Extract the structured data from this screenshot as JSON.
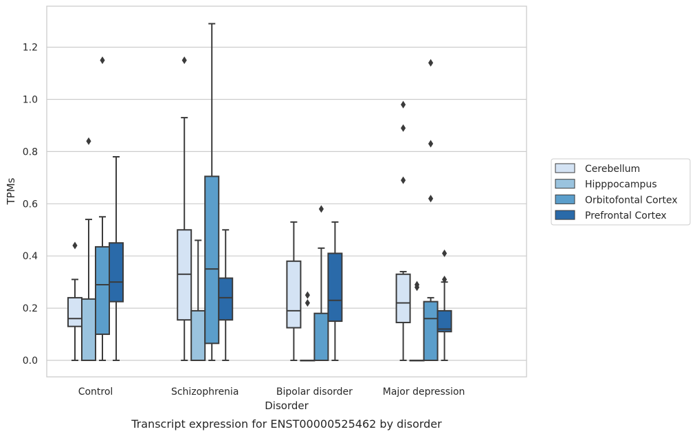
{
  "chart_data": {
    "type": "box",
    "title": "",
    "caption": "Transcript expression for ENST00000525462 by disorder",
    "xlabel": "Disorder",
    "ylabel": "TPMs",
    "ylim": [
      -0.065,
      1.36
    ],
    "yticks": [
      0.0,
      0.2,
      0.4,
      0.6,
      0.8,
      1.0,
      1.2
    ],
    "ytick_labels": [
      "0.0",
      "0.2",
      "0.4",
      "0.6",
      "0.8",
      "1.0",
      "1.2"
    ],
    "grid": "horizontal",
    "legend_position": "right",
    "categories": [
      "Control",
      "Schizophrenia",
      "Bipolar disorder",
      "Major depression"
    ],
    "series": [
      {
        "name": "Cerebellum",
        "color": "#d4e3f4",
        "boxes": [
          {
            "min": 0.0,
            "q1": 0.13,
            "median": 0.16,
            "q3": 0.24,
            "max": 0.31,
            "outliers": [
              0.44
            ]
          },
          {
            "min": 0.0,
            "q1": 0.155,
            "median": 0.33,
            "q3": 0.5,
            "max": 0.93,
            "outliers": [
              1.15
            ]
          },
          {
            "min": 0.0,
            "q1": 0.125,
            "median": 0.19,
            "q3": 0.38,
            "max": 0.53,
            "outliers": []
          },
          {
            "min": 0.0,
            "q1": 0.145,
            "median": 0.22,
            "q3": 0.33,
            "max": 0.34,
            "outliers": [
              0.69,
              0.89,
              0.98
            ]
          }
        ]
      },
      {
        "name": "Hipppocampus",
        "color": "#9ac3de",
        "boxes": [
          {
            "min": 0.0,
            "q1": 0.0,
            "median": 0.0,
            "q3": 0.235,
            "max": 0.54,
            "outliers": [
              0.84
            ]
          },
          {
            "min": 0.0,
            "q1": 0.0,
            "median": 0.0,
            "q3": 0.19,
            "max": 0.46,
            "outliers": []
          },
          {
            "min": 0.0,
            "q1": 0.0,
            "median": 0.0,
            "q3": 0.0,
            "max": 0.0,
            "outliers": [
              0.22,
              0.25
            ]
          },
          {
            "min": 0.0,
            "q1": 0.0,
            "median": 0.0,
            "q3": 0.0,
            "max": 0.0,
            "outliers": [
              0.28,
              0.29
            ]
          }
        ]
      },
      {
        "name": "Orbitofontal Cortex",
        "color": "#5b9ecb",
        "boxes": [
          {
            "min": 0.0,
            "q1": 0.1,
            "median": 0.29,
            "q3": 0.435,
            "max": 0.55,
            "outliers": [
              1.15
            ]
          },
          {
            "min": 0.0,
            "q1": 0.065,
            "median": 0.35,
            "q3": 0.705,
            "max": 1.29,
            "outliers": []
          },
          {
            "min": 0.0,
            "q1": 0.0,
            "median": 0.0,
            "q3": 0.18,
            "max": 0.43,
            "outliers": [
              0.58
            ]
          },
          {
            "min": 0.0,
            "q1": 0.0,
            "median": 0.16,
            "q3": 0.225,
            "max": 0.24,
            "outliers": [
              0.62,
              0.83,
              1.14
            ]
          }
        ]
      },
      {
        "name": "Prefrontal Cortex",
        "color": "#2a6aa9",
        "boxes": [
          {
            "min": 0.0,
            "q1": 0.225,
            "median": 0.3,
            "q3": 0.45,
            "max": 0.78,
            "outliers": []
          },
          {
            "min": 0.0,
            "q1": 0.155,
            "median": 0.24,
            "q3": 0.315,
            "max": 0.5,
            "outliers": []
          },
          {
            "min": 0.0,
            "q1": 0.15,
            "median": 0.23,
            "q3": 0.41,
            "max": 0.53,
            "outliers": []
          },
          {
            "min": 0.0,
            "q1": 0.11,
            "median": 0.12,
            "q3": 0.19,
            "max": 0.3,
            "outliers": [
              0.31,
              0.41
            ]
          }
        ]
      }
    ]
  }
}
